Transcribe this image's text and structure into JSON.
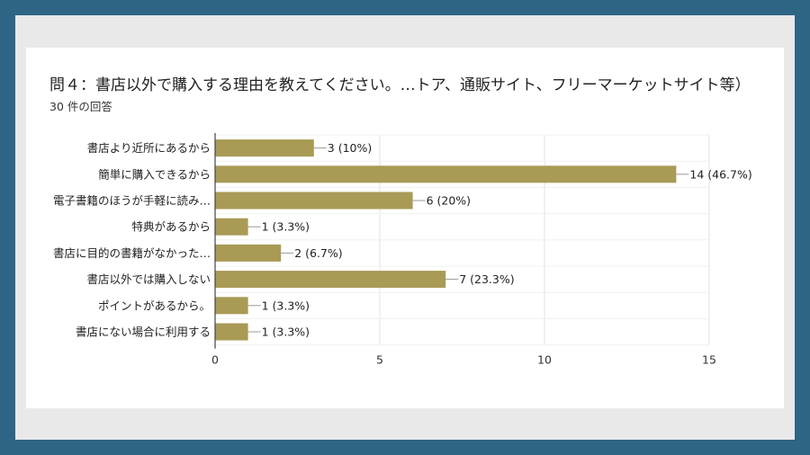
{
  "question": {
    "title": "問４：書店以外で購入する理由を教えてください。…トア、通販サイト、フリーマーケットサイト等）",
    "responses": "30 件の回答"
  },
  "chart_data": {
    "type": "bar",
    "orientation": "horizontal",
    "categories": [
      "書店より近所にあるから",
      "簡単に購入できるから",
      "電子書籍のほうが手軽に読み…",
      "特典があるから",
      "書店に目的の書籍がなかった…",
      "書店以外では購入しない",
      "ポイントがあるから。",
      "書店にない場合に利用する"
    ],
    "values": [
      3,
      14,
      6,
      1,
      2,
      7,
      1,
      1
    ],
    "data_labels": [
      "3 (10%)",
      "14 (46.7%)",
      "6 (20%)",
      "1 (3.3%)",
      "2 (6.7%)",
      "7 (23.3%)",
      "1 (3.3%)",
      "1 (3.3%)"
    ],
    "xlim": [
      0,
      15
    ],
    "xticks": [
      0,
      5,
      10,
      15
    ],
    "grid": true,
    "bar_color": "#a99a56",
    "xlabel": "",
    "ylabel": ""
  }
}
